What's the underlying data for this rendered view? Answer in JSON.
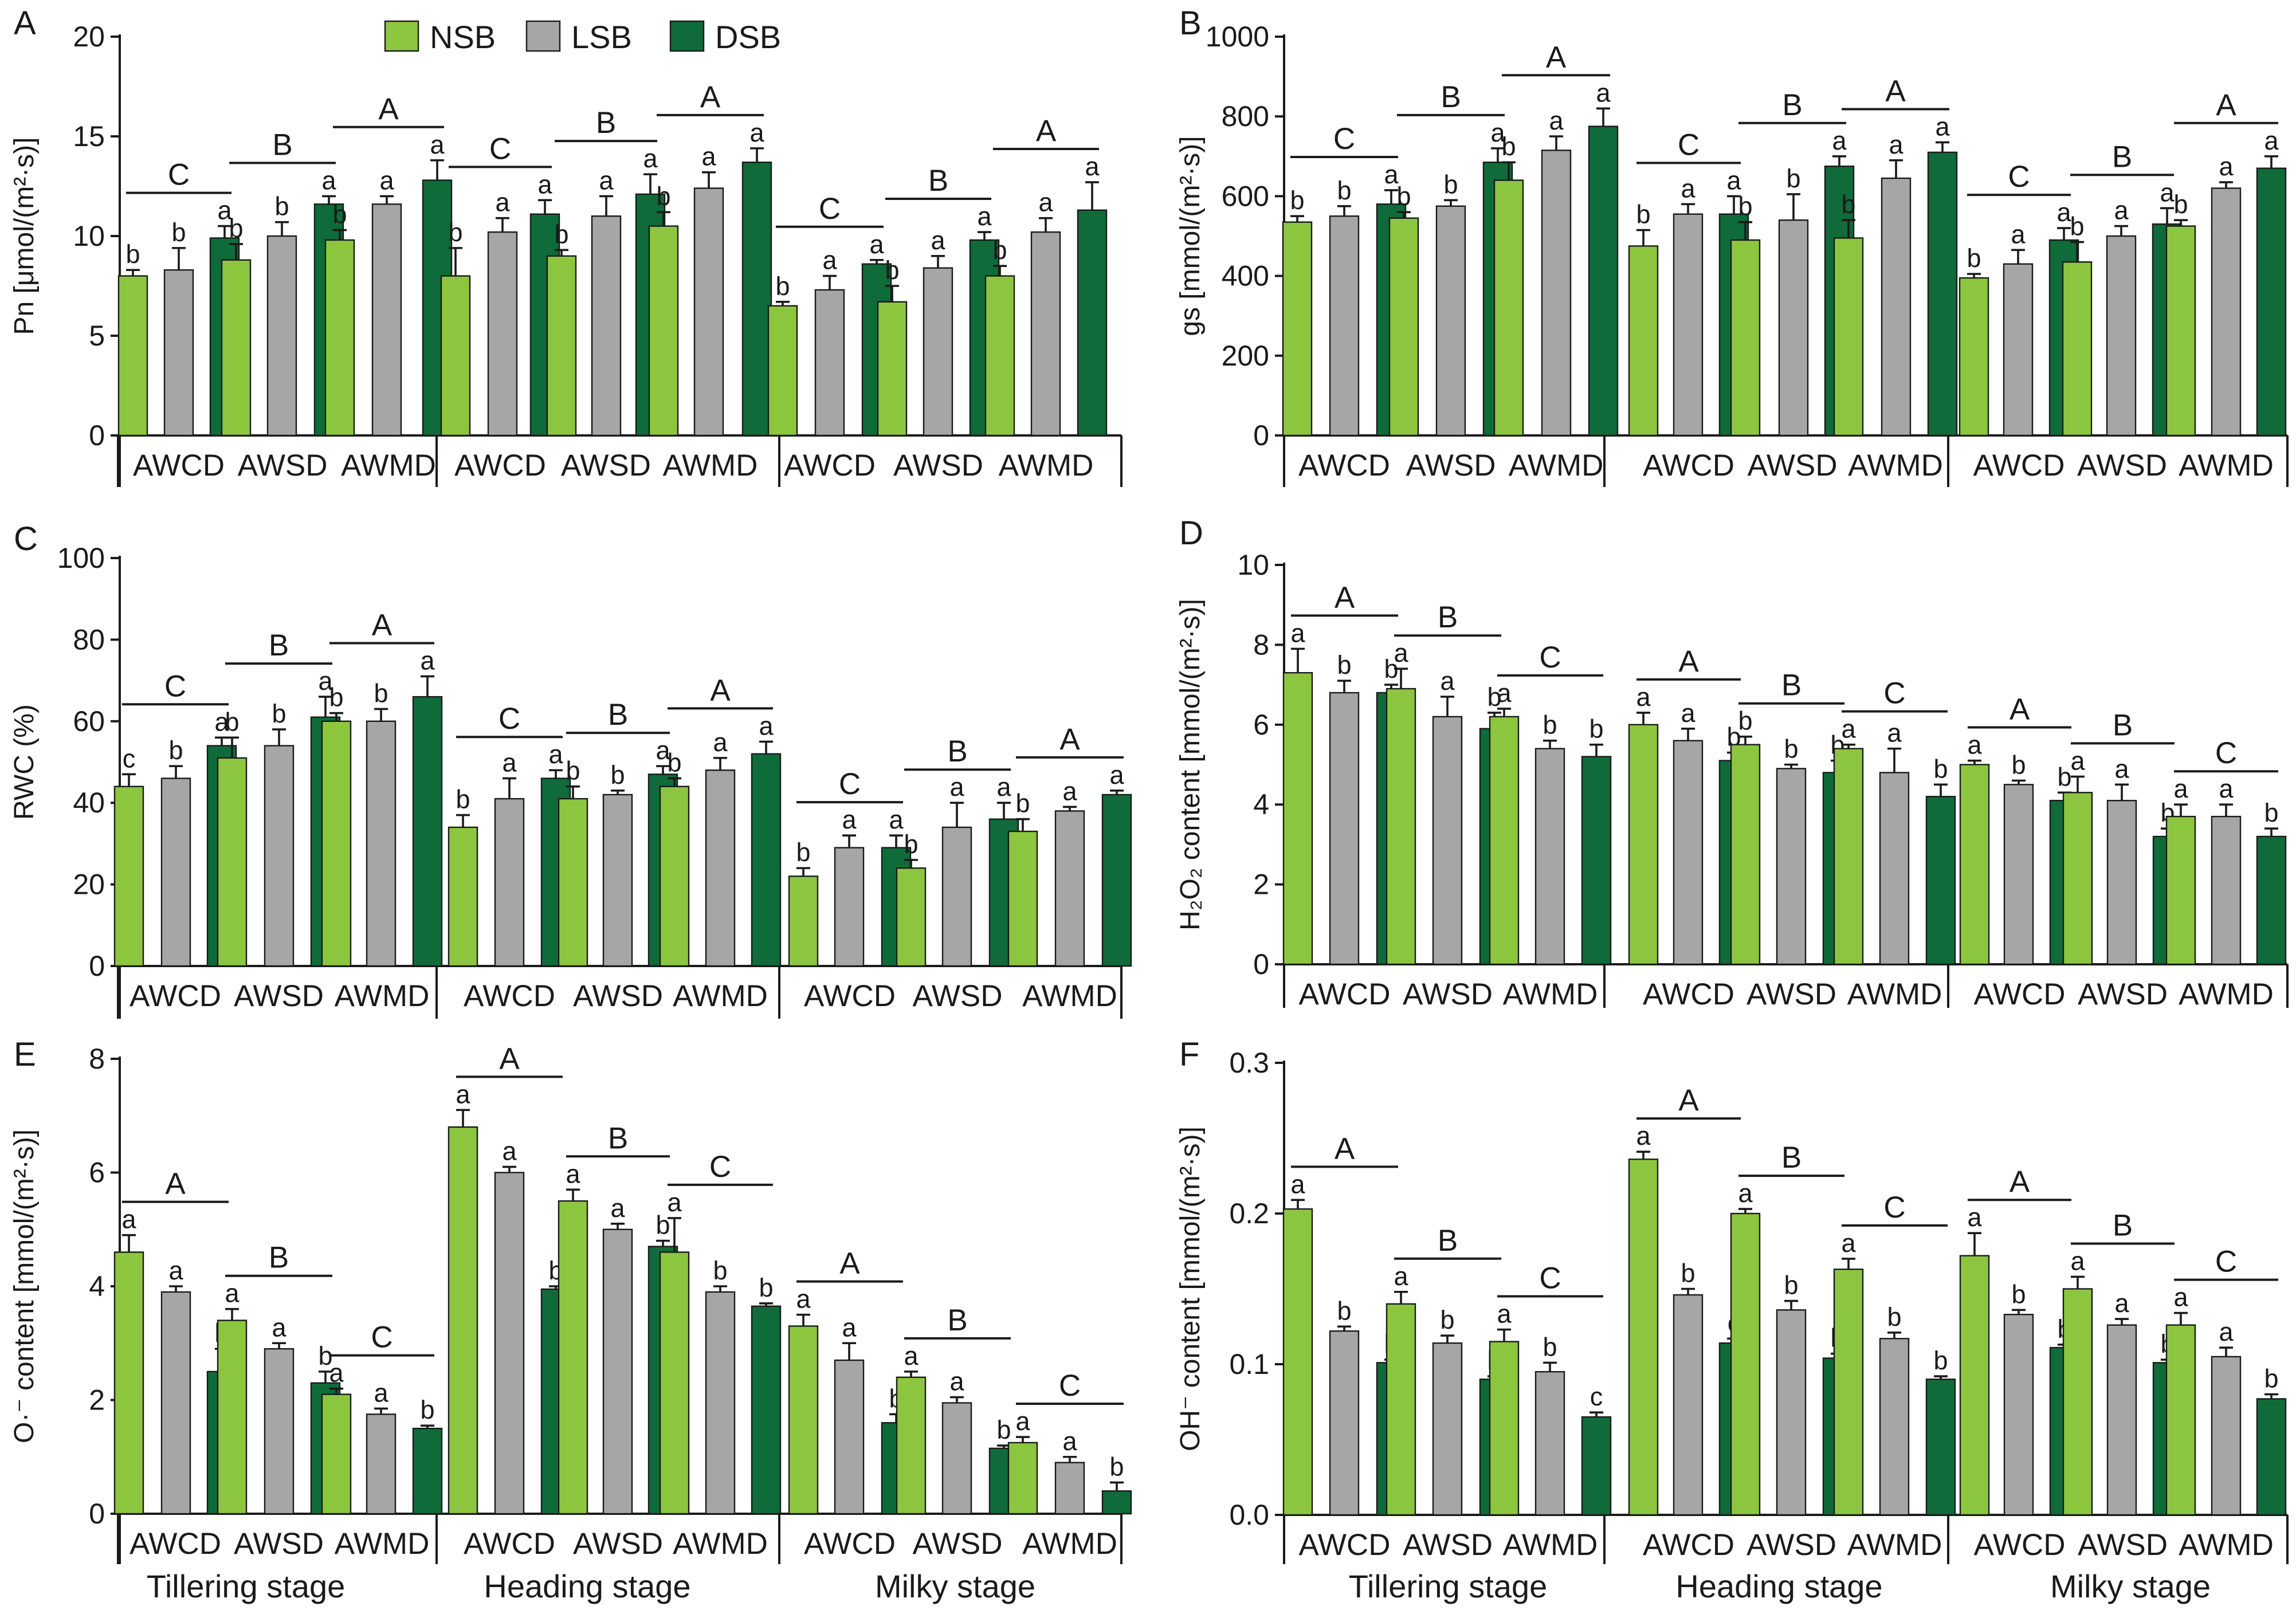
{
  "legend": {
    "series": [
      {
        "name": "NSB",
        "color": "#8cc63f"
      },
      {
        "name": "LSB",
        "color": "#a6a6a6"
      },
      {
        "name": "DSB",
        "color": "#0f6b3a"
      }
    ]
  },
  "groups": [
    "AWCD",
    "AWSD",
    "AWMD"
  ],
  "stages": [
    "Tillering stage",
    "Heading stage",
    "Milky stage"
  ],
  "chart_data": [
    {
      "panel": "A",
      "type": "bar",
      "ylabel": "Pn [μmol/(m²·s)]",
      "ylim": [
        0,
        20
      ],
      "yticks": [
        "0",
        "5",
        "10",
        "15",
        "20"
      ],
      "values": [
        [
          [
            8.0,
            8.3,
            9.9
          ],
          [
            8.8,
            10.0,
            11.6
          ],
          [
            9.8,
            11.6,
            12.8
          ]
        ],
        [
          [
            8.0,
            10.2,
            11.1
          ],
          [
            9.0,
            11.0,
            12.1
          ],
          [
            10.5,
            12.4,
            13.7
          ]
        ],
        [
          [
            6.5,
            7.3,
            8.6
          ],
          [
            6.7,
            8.4,
            9.8
          ],
          [
            8.0,
            10.2,
            11.3
          ]
        ]
      ],
      "errors": [
        [
          [
            0.3,
            1.1,
            0.6
          ],
          [
            0.8,
            0.7,
            0.4
          ],
          [
            0.5,
            0.4,
            1.0
          ]
        ],
        [
          [
            1.4,
            0.7,
            0.7
          ],
          [
            0.3,
            1.0,
            1.0
          ],
          [
            0.7,
            0.8,
            0.7
          ]
        ],
        [
          [
            0.2,
            0.7,
            0.2
          ],
          [
            0.8,
            0.6,
            0.4
          ],
          [
            0.5,
            0.7,
            1.4
          ]
        ]
      ],
      "letters": [
        [
          [
            "b",
            "b",
            "a"
          ],
          [
            "b",
            "b",
            "a"
          ],
          [
            "b",
            "a",
            "a"
          ]
        ],
        [
          [
            "b",
            "a",
            "a"
          ],
          [
            "b",
            "a",
            "a"
          ],
          [
            "b",
            "a",
            "a"
          ]
        ],
        [
          [
            "b",
            "a",
            "a"
          ],
          [
            "b",
            "a",
            "a"
          ],
          [
            "b",
            "a",
            "a"
          ]
        ]
      ],
      "group_letters": [
        [
          "C",
          "B",
          "A"
        ],
        [
          "C",
          "B",
          "A"
        ],
        [
          "C",
          "B",
          "A"
        ]
      ]
    },
    {
      "panel": "B",
      "type": "bar",
      "ylabel": "gs [mmol/(m²·s)]",
      "ylim": [
        0,
        1000
      ],
      "yticks": [
        "0",
        "200",
        "400",
        "600",
        "800",
        "1000"
      ],
      "values": [
        [
          [
            535,
            550,
            580
          ],
          [
            545,
            575,
            685
          ],
          [
            640,
            715,
            775
          ]
        ],
        [
          [
            475,
            555,
            555
          ],
          [
            490,
            540,
            675
          ],
          [
            495,
            645,
            710
          ]
        ],
        [
          [
            395,
            430,
            490
          ],
          [
            435,
            500,
            530
          ],
          [
            525,
            620,
            670
          ]
        ]
      ],
      "errors": [
        [
          [
            15,
            25,
            35
          ],
          [
            15,
            15,
            35
          ],
          [
            45,
            35,
            45
          ]
        ],
        [
          [
            40,
            25,
            45
          ],
          [
            45,
            65,
            25
          ],
          [
            45,
            45,
            25
          ]
        ],
        [
          [
            10,
            35,
            30
          ],
          [
            50,
            25,
            40
          ],
          [
            15,
            15,
            30
          ]
        ]
      ],
      "letters": [
        [
          [
            "b",
            "b",
            "a"
          ],
          [
            "b",
            "b",
            "a"
          ],
          [
            "b",
            "a",
            "a"
          ]
        ],
        [
          [
            "b",
            "a",
            "a"
          ],
          [
            "b",
            "b",
            "a"
          ],
          [
            "b",
            "a",
            "a"
          ]
        ],
        [
          [
            "b",
            "a",
            "a"
          ],
          [
            "b",
            "a",
            "a"
          ],
          [
            "b",
            "a",
            "a"
          ]
        ]
      ],
      "group_letters": [
        [
          "C",
          "B",
          "A"
        ],
        [
          "C",
          "B",
          "A"
        ],
        [
          "C",
          "B",
          "A"
        ]
      ]
    },
    {
      "panel": "C",
      "type": "bar",
      "ylabel": "RWC (%)",
      "ylim": [
        0,
        100
      ],
      "yticks": [
        "0",
        "20",
        "40",
        "60",
        "80",
        "100"
      ],
      "values": [
        [
          [
            44,
            46,
            54
          ],
          [
            51,
            54,
            61
          ],
          [
            60,
            60,
            66
          ]
        ],
        [
          [
            34,
            41,
            46
          ],
          [
            41,
            42,
            47
          ],
          [
            44,
            48,
            52
          ]
        ],
        [
          [
            22,
            29,
            29
          ],
          [
            24,
            34,
            36
          ],
          [
            33,
            38,
            42
          ]
        ]
      ],
      "errors": [
        [
          [
            3,
            3,
            2
          ],
          [
            5,
            4,
            5
          ],
          [
            2,
            3,
            5
          ]
        ],
        [
          [
            3,
            5,
            2
          ],
          [
            3,
            1,
            2
          ],
          [
            2,
            3,
            3
          ]
        ],
        [
          [
            2,
            3,
            3
          ],
          [
            2,
            6,
            4
          ],
          [
            3,
            1,
            1
          ]
        ]
      ],
      "letters": [
        [
          [
            "c",
            "b",
            "a"
          ],
          [
            "b",
            "b",
            "a"
          ],
          [
            "b",
            "b",
            "a"
          ]
        ],
        [
          [
            "b",
            "a",
            "a"
          ],
          [
            "b",
            "b",
            "a"
          ],
          [
            "b",
            "a",
            "a"
          ]
        ],
        [
          [
            "b",
            "a",
            "a"
          ],
          [
            "b",
            "a",
            "a"
          ],
          [
            "b",
            "a",
            "a"
          ]
        ]
      ],
      "group_letters": [
        [
          "C",
          "B",
          "A"
        ],
        [
          "C",
          "B",
          "A"
        ],
        [
          "C",
          "B",
          "A"
        ]
      ]
    },
    {
      "panel": "D",
      "type": "bar",
      "ylabel": "H₂O₂ content [mmol/(m²·s)]",
      "ylim": [
        0,
        10
      ],
      "yticks": [
        "0",
        "2",
        "4",
        "6",
        "8",
        "10"
      ],
      "values": [
        [
          [
            7.3,
            6.8,
            6.8
          ],
          [
            6.9,
            6.2,
            5.9
          ],
          [
            6.2,
            5.4,
            5.2
          ]
        ],
        [
          [
            6.0,
            5.6,
            5.1
          ],
          [
            5.5,
            4.9,
            4.8
          ],
          [
            5.4,
            4.8,
            4.2
          ]
        ],
        [
          [
            5.0,
            4.5,
            4.1
          ],
          [
            4.3,
            4.1,
            3.2
          ],
          [
            3.7,
            3.7,
            3.2
          ]
        ]
      ],
      "errors": [
        [
          [
            0.6,
            0.3,
            0.2
          ],
          [
            0.5,
            0.5,
            0.4
          ],
          [
            0.2,
            0.2,
            0.3
          ]
        ],
        [
          [
            0.3,
            0.3,
            0.2
          ],
          [
            0.2,
            0.1,
            0.3
          ],
          [
            0.1,
            0.6,
            0.3
          ]
        ],
        [
          [
            0.1,
            0.1,
            0.2
          ],
          [
            0.4,
            0.4,
            0.2
          ],
          [
            0.3,
            0.3,
            0.2
          ]
        ]
      ],
      "letters": [
        [
          [
            "a",
            "b",
            "b"
          ],
          [
            "a",
            "a",
            "b"
          ],
          [
            "a",
            "b",
            "b"
          ]
        ],
        [
          [
            "a",
            "a",
            "b"
          ],
          [
            "b",
            "b",
            "b"
          ],
          [
            "a",
            "a",
            "b"
          ]
        ],
        [
          [
            "a",
            "b",
            "b"
          ],
          [
            "a",
            "a",
            "b"
          ],
          [
            "a",
            "a",
            "b"
          ]
        ]
      ],
      "group_letters": [
        [
          "A",
          "B",
          "C"
        ],
        [
          "A",
          "B",
          "C"
        ],
        [
          "A",
          "B",
          "C"
        ]
      ]
    },
    {
      "panel": "E",
      "type": "bar",
      "ylabel": "O·⁻ content [mmol/(m²·s)]",
      "ylim": [
        0,
        8
      ],
      "yticks": [
        "0",
        "2",
        "4",
        "6",
        "8"
      ],
      "values": [
        [
          [
            4.6,
            3.9,
            2.5
          ],
          [
            3.4,
            2.9,
            2.3
          ],
          [
            2.1,
            1.75,
            1.5
          ]
        ],
        [
          [
            6.8,
            6.0,
            3.95
          ],
          [
            5.5,
            5.0,
            4.7
          ],
          [
            4.6,
            3.9,
            3.65
          ]
        ],
        [
          [
            3.3,
            2.7,
            1.6
          ],
          [
            2.4,
            1.95,
            1.15
          ],
          [
            1.25,
            0.9,
            0.4
          ]
        ]
      ],
      "errors": [
        [
          [
            0.3,
            0.1,
            0.4
          ],
          [
            0.2,
            0.1,
            0.2
          ],
          [
            0.1,
            0.1,
            0.05
          ]
        ],
        [
          [
            0.3,
            0.1,
            0.05
          ],
          [
            0.2,
            0.1,
            0.1
          ],
          [
            0.6,
            0.1,
            0.05
          ]
        ],
        [
          [
            0.2,
            0.3,
            0.15
          ],
          [
            0.1,
            0.1,
            0.05
          ],
          [
            0.1,
            0.1,
            0.15
          ]
        ]
      ],
      "letters": [
        [
          [
            "a",
            "a",
            "b"
          ],
          [
            "a",
            "a",
            "b"
          ],
          [
            "a",
            "a",
            "b"
          ]
        ],
        [
          [
            "a",
            "a",
            "b"
          ],
          [
            "a",
            "a",
            "b"
          ],
          [
            "a",
            "b",
            "b"
          ]
        ],
        [
          [
            "a",
            "a",
            "b"
          ],
          [
            "a",
            "a",
            "b"
          ],
          [
            "a",
            "a",
            "b"
          ]
        ]
      ],
      "group_letters": [
        [
          "A",
          "B",
          "C"
        ],
        [
          "A",
          "B",
          "C"
        ],
        [
          "A",
          "B",
          "C"
        ]
      ]
    },
    {
      "panel": "F",
      "type": "bar",
      "ylabel": "OH⁻ content [mmol/(m²·s)]",
      "ylim": [
        0,
        0.3
      ],
      "yticks": [
        "0.0",
        "0.1",
        "0.2",
        "0.3"
      ],
      "values": [
        [
          [
            0.203,
            0.122,
            0.101
          ],
          [
            0.14,
            0.114,
            0.09
          ],
          [
            0.115,
            0.095,
            0.065
          ]
        ],
        [
          [
            0.236,
            0.146,
            0.114
          ],
          [
            0.2,
            0.136,
            0.104
          ],
          [
            0.163,
            0.117,
            0.09
          ]
        ],
        [
          [
            0.172,
            0.133,
            0.111
          ],
          [
            0.15,
            0.126,
            0.101
          ],
          [
            0.126,
            0.105,
            0.077
          ]
        ]
      ],
      "errors": [
        [
          [
            0.006,
            0.003,
            0.002
          ],
          [
            0.008,
            0.005,
            0.002
          ],
          [
            0.008,
            0.006,
            0.003
          ]
        ],
        [
          [
            0.005,
            0.004,
            0.003
          ],
          [
            0.003,
            0.006,
            0.003
          ],
          [
            0.007,
            0.004,
            0.002
          ]
        ],
        [
          [
            0.015,
            0.003,
            0.002
          ],
          [
            0.008,
            0.004,
            0.002
          ],
          [
            0.008,
            0.006,
            0.003
          ]
        ]
      ],
      "letters": [
        [
          [
            "a",
            "b",
            "b"
          ],
          [
            "a",
            "b",
            "b"
          ],
          [
            "a",
            "b",
            "c"
          ]
        ],
        [
          [
            "a",
            "b",
            "c"
          ],
          [
            "a",
            "b",
            "b"
          ],
          [
            "a",
            "b",
            "b"
          ]
        ],
        [
          [
            "a",
            "b",
            "b"
          ],
          [
            "a",
            "a",
            "b"
          ],
          [
            "a",
            "a",
            "b"
          ]
        ]
      ],
      "group_letters": [
        [
          "A",
          "B",
          "C"
        ],
        [
          "A",
          "B",
          "C"
        ],
        [
          "A",
          "B",
          "C"
        ]
      ]
    }
  ]
}
